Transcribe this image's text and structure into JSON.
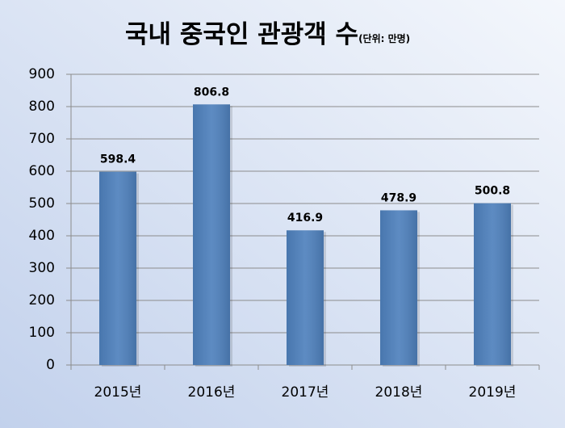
{
  "chart_data": {
    "type": "bar",
    "title": "국내 중국인 관광객 수",
    "subtitle": "(단위: 만명)",
    "categories": [
      "2015년",
      "2016년",
      "2017년",
      "2018년",
      "2019년"
    ],
    "values": [
      598.4,
      806.8,
      416.9,
      478.9,
      500.8
    ],
    "color": "#4f81bd",
    "ylim": [
      0,
      900
    ],
    "yticks": [
      0,
      100,
      200,
      300,
      400,
      500,
      600,
      700,
      800,
      900
    ],
    "grid": true
  }
}
